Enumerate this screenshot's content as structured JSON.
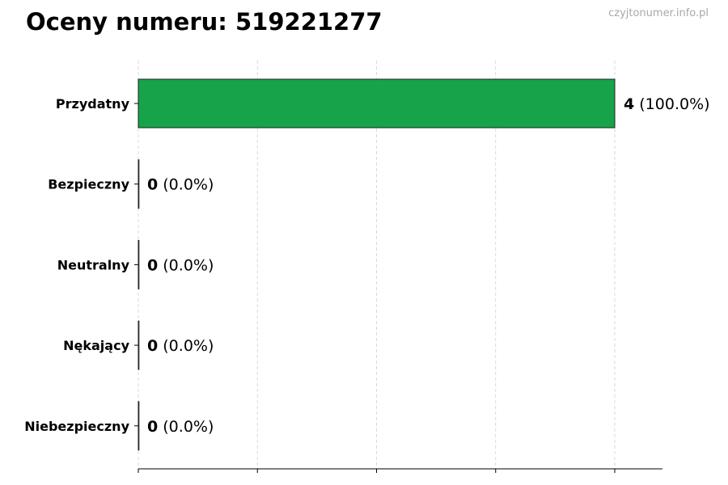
{
  "title": "Oceny numeru: 519221277",
  "watermark": "czyjtonumer.info.pl",
  "chart_data": {
    "type": "bar",
    "orientation": "horizontal",
    "title": "Oceny numeru: 519221277",
    "categories": [
      "Przydatny",
      "Bezpieczny",
      "Neutralny",
      "Nękający",
      "Niebezpieczny"
    ],
    "values": [
      4,
      0,
      0,
      0,
      0
    ],
    "percent_labels": [
      "(100.0%)",
      "(0.0%)",
      "(0.0%)",
      "(0.0%)",
      "(0.0%)"
    ],
    "bar_color": "#17a34a",
    "xlim": [
      0,
      4.4
    ],
    "xticks": [
      0,
      1,
      2,
      3,
      4
    ],
    "xtick_labels_visible": false,
    "grid": "x, dashed",
    "xlabel": "",
    "ylabel": ""
  }
}
